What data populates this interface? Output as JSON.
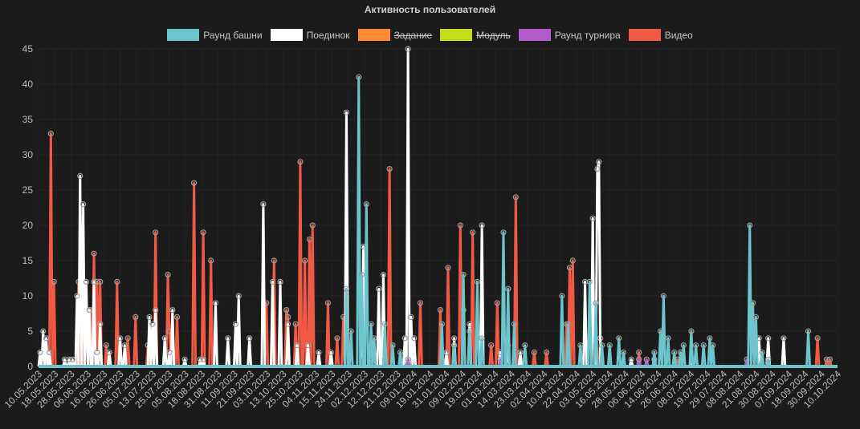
{
  "chart_data": {
    "type": "line",
    "title": "Активность пользователей",
    "xlabel": "",
    "ylabel": "",
    "ylim": [
      0,
      45
    ],
    "yticks": [
      "0",
      "5",
      "10",
      "15",
      "20",
      "25",
      "30",
      "35",
      "40",
      "45"
    ],
    "grid": true,
    "legend_position": "top",
    "start_date": "10.05.2023",
    "end_date": "10.10.2024",
    "num_days": 520,
    "x_tick_labels": [
      "10.05.2023",
      "18.05.2023",
      "28.05.2023",
      "06.06.2023",
      "16.06.2023",
      "26.06.2023",
      "05.07.2023",
      "13.07.2023",
      "25.07.2023",
      "05.08.2023",
      "18.08.2023",
      "31.08.2023",
      "11.09.2023",
      "21.09.2023",
      "03.10.2023",
      "13.10.2023",
      "25.10.2023",
      "04.11.2023",
      "15.11.2023",
      "24.11.2023",
      "02.12.2023",
      "12.12.2023",
      "21.12.2023",
      "09.01.2024",
      "19.01.2024",
      "31.01.2024",
      "09.02.2024",
      "19.02.2024",
      "01.03.2024",
      "14.03.2024",
      "23.03.2024",
      "02.04.2024",
      "10.04.2024",
      "22.04.2024",
      "03.05.2024",
      "16.05.2024",
      "28.05.2024",
      "06.06.2024",
      "14.06.2024",
      "26.06.2024",
      "08.07.2024",
      "19.07.2024",
      "29.07.2024",
      "08.08.2024",
      "21.08.2024",
      "30.08.2024",
      "07.09.2024",
      "18.09.2024",
      "30.09.2024",
      "10.10.2024"
    ],
    "series": [
      {
        "name": "Раунд башни",
        "color": "#6cc5cc",
        "hidden": false,
        "points": [
          [
            200,
            11
          ],
          [
            203,
            5
          ],
          [
            208,
            41
          ],
          [
            210,
            13
          ],
          [
            213,
            23
          ],
          [
            216,
            6
          ],
          [
            218,
            4
          ],
          [
            225,
            6
          ],
          [
            230,
            3
          ],
          [
            235,
            2
          ],
          [
            262,
            6
          ],
          [
            270,
            3
          ],
          [
            276,
            13
          ],
          [
            280,
            5
          ],
          [
            285,
            12
          ],
          [
            288,
            4
          ],
          [
            302,
            19
          ],
          [
            305,
            11
          ],
          [
            309,
            6
          ],
          [
            316,
            3
          ],
          [
            340,
            10
          ],
          [
            344,
            6
          ],
          [
            352,
            3
          ],
          [
            358,
            12
          ],
          [
            362,
            9
          ],
          [
            366,
            3
          ],
          [
            371,
            3
          ],
          [
            377,
            4
          ],
          [
            380,
            2
          ],
          [
            400,
            2
          ],
          [
            404,
            5
          ],
          [
            406,
            10
          ],
          [
            409,
            4
          ],
          [
            413,
            2
          ],
          [
            417,
            2
          ],
          [
            419,
            3
          ],
          [
            424,
            5
          ],
          [
            427,
            3
          ],
          [
            432,
            3
          ],
          [
            436,
            4
          ],
          [
            438,
            3
          ],
          [
            462,
            20
          ],
          [
            464,
            9
          ],
          [
            466,
            7
          ],
          [
            470,
            2
          ],
          [
            474,
            1
          ],
          [
            500,
            5
          ]
        ]
      },
      {
        "name": "Поединок",
        "color": "#ffffff",
        "hidden": false,
        "points": [
          [
            1,
            2
          ],
          [
            3,
            5
          ],
          [
            5,
            4
          ],
          [
            7,
            2
          ],
          [
            17,
            1
          ],
          [
            20,
            1
          ],
          [
            22,
            1
          ],
          [
            25,
            10
          ],
          [
            27,
            27
          ],
          [
            29,
            23
          ],
          [
            31,
            12
          ],
          [
            33,
            8
          ],
          [
            36,
            12
          ],
          [
            38,
            2
          ],
          [
            40,
            6
          ],
          [
            46,
            2
          ],
          [
            53,
            4
          ],
          [
            56,
            3
          ],
          [
            72,
            7
          ],
          [
            74,
            6
          ],
          [
            76,
            8
          ],
          [
            82,
            4
          ],
          [
            85,
            2
          ],
          [
            87,
            8
          ],
          [
            95,
            1
          ],
          [
            105,
            1
          ],
          [
            107,
            1
          ],
          [
            115,
            9
          ],
          [
            123,
            4
          ],
          [
            128,
            6
          ],
          [
            130,
            10
          ],
          [
            137,
            4
          ],
          [
            146,
            23
          ],
          [
            152,
            12
          ],
          [
            157,
            12
          ],
          [
            162,
            6
          ],
          [
            168,
            3
          ],
          [
            175,
            3
          ],
          [
            182,
            2
          ],
          [
            190,
            2
          ],
          [
            200,
            36
          ],
          [
            211,
            17
          ],
          [
            221,
            11
          ],
          [
            224,
            13
          ],
          [
            238,
            4
          ],
          [
            240,
            45
          ],
          [
            242,
            7
          ],
          [
            244,
            4
          ],
          [
            265,
            2
          ],
          [
            270,
            4
          ],
          [
            280,
            6
          ],
          [
            288,
            20
          ],
          [
            300,
            2
          ],
          [
            305,
            3
          ],
          [
            313,
            2
          ],
          [
            355,
            12
          ],
          [
            360,
            21
          ],
          [
            363,
            28
          ],
          [
            364,
            29
          ],
          [
            385,
            1
          ],
          [
            400,
            1
          ],
          [
            425,
            1
          ],
          [
            468,
            4
          ],
          [
            474,
            4
          ],
          [
            484,
            4
          ]
        ]
      },
      {
        "name": "Задание",
        "color": "#ff8a33",
        "hidden": true,
        "points": []
      },
      {
        "name": "Модуль",
        "color": "#c2dd1a",
        "hidden": true,
        "points": []
      },
      {
        "name": "Раунд турнира",
        "color": "#b45bcc",
        "hidden": false,
        "points": [
          [
            210,
            1
          ],
          [
            215,
            1
          ],
          [
            225,
            1
          ],
          [
            240,
            1
          ],
          [
            300,
            1
          ],
          [
            390,
            1
          ],
          [
            395,
            1
          ],
          [
            460,
            1
          ]
        ]
      },
      {
        "name": "Видео",
        "color": "#f05a45",
        "hidden": false,
        "points": [
          [
            5,
            2
          ],
          [
            8,
            33
          ],
          [
            10,
            12
          ],
          [
            26,
            12
          ],
          [
            28,
            8
          ],
          [
            34,
            8
          ],
          [
            36,
            16
          ],
          [
            38,
            12
          ],
          [
            40,
            12
          ],
          [
            44,
            3
          ],
          [
            51,
            12
          ],
          [
            58,
            4
          ],
          [
            63,
            7
          ],
          [
            71,
            3
          ],
          [
            76,
            19
          ],
          [
            85,
            5
          ],
          [
            84,
            13
          ],
          [
            90,
            7
          ],
          [
            101,
            26
          ],
          [
            107,
            19
          ],
          [
            112,
            15
          ],
          [
            148,
            9
          ],
          [
            153,
            15
          ],
          [
            161,
            8
          ],
          [
            162,
            7
          ],
          [
            167,
            6
          ],
          [
            170,
            29
          ],
          [
            173,
            15
          ],
          [
            176,
            18
          ],
          [
            178,
            20
          ],
          [
            188,
            9
          ],
          [
            194,
            4
          ],
          [
            198,
            7
          ],
          [
            228,
            28
          ],
          [
            248,
            9
          ],
          [
            261,
            8
          ],
          [
            266,
            14
          ],
          [
            274,
            20
          ],
          [
            276,
            8
          ],
          [
            282,
            19
          ],
          [
            294,
            3
          ],
          [
            298,
            9
          ],
          [
            310,
            24
          ],
          [
            322,
            2
          ],
          [
            330,
            2
          ],
          [
            343,
            6
          ],
          [
            345,
            14
          ],
          [
            347,
            15
          ],
          [
            365,
            4
          ],
          [
            390,
            2
          ],
          [
            415,
            1
          ],
          [
            506,
            4
          ],
          [
            512,
            1
          ],
          [
            514,
            1
          ]
        ]
      }
    ]
  }
}
